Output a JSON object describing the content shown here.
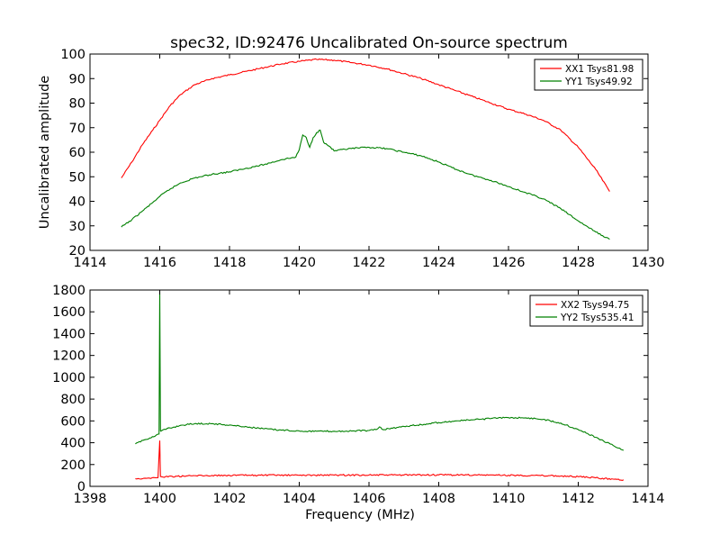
{
  "title": "spec32, ID:92476 Uncalibrated On-source spectrum",
  "colors": {
    "red": "#ff0000",
    "green": "#008000"
  },
  "chart_data": [
    {
      "type": "line",
      "title": "spec32, ID:92476 Uncalibrated On-source spectrum",
      "xlabel": "",
      "ylabel": "Uncalibrated amplitude",
      "xlim": [
        1414,
        1430
      ],
      "ylim": [
        20,
        100
      ],
      "xticks": [
        "1414",
        "1416",
        "1418",
        "1420",
        "1422",
        "1424",
        "1426",
        "1428",
        "1430"
      ],
      "yticks": [
        "20",
        "30",
        "40",
        "50",
        "60",
        "70",
        "80",
        "90",
        "100"
      ],
      "legend_position": "top-right",
      "grid": false,
      "series": [
        {
          "name": "XX1 Tsys81.98",
          "color": "#ff0000",
          "x": [
            1414.9,
            1415.2,
            1415.5,
            1415.8,
            1416.0,
            1416.3,
            1416.6,
            1417.0,
            1417.5,
            1418.0,
            1418.5,
            1419.0,
            1419.5,
            1420.0,
            1420.5,
            1421.0,
            1421.5,
            1422.0,
            1422.5,
            1423.0,
            1423.5,
            1424.0,
            1424.5,
            1425.0,
            1425.5,
            1426.0,
            1426.5,
            1427.0,
            1427.5,
            1428.0,
            1428.5,
            1428.9
          ],
          "y": [
            49.5,
            56,
            63,
            69,
            73,
            79,
            83.5,
            87.5,
            90,
            91.5,
            93,
            94.5,
            96,
            97,
            97.8,
            97.5,
            96.5,
            95.5,
            94,
            92,
            90,
            87.5,
            85,
            82.5,
            80,
            77.5,
            75.5,
            73,
            69,
            62,
            53,
            44
          ]
        },
        {
          "name": "YY1 Tsys49.92",
          "color": "#008000",
          "x": [
            1414.9,
            1415.2,
            1415.5,
            1415.8,
            1416.0,
            1416.3,
            1416.6,
            1417.0,
            1417.5,
            1418.0,
            1418.5,
            1419.0,
            1419.5,
            1419.9,
            1420.0,
            1420.1,
            1420.2,
            1420.3,
            1420.4,
            1420.5,
            1420.6,
            1420.7,
            1420.8,
            1420.9,
            1421.0,
            1421.5,
            1422.0,
            1422.5,
            1423.0,
            1423.5,
            1424.0,
            1424.5,
            1425.0,
            1425.5,
            1426.0,
            1426.5,
            1427.0,
            1427.5,
            1428.0,
            1428.5,
            1428.9
          ],
          "y": [
            29.5,
            32.5,
            36,
            39.5,
            42,
            45,
            47.5,
            49.5,
            51,
            52,
            53.5,
            55,
            57,
            58,
            61,
            67,
            66,
            62,
            66,
            68,
            69,
            64,
            63,
            62,
            60.5,
            61.5,
            62,
            61.5,
            60,
            58.5,
            56,
            53,
            50.5,
            48.5,
            46,
            43.5,
            41,
            37,
            32,
            27.5,
            24.5
          ]
        }
      ]
    },
    {
      "type": "line",
      "title": "",
      "xlabel": "Frequency (MHz)",
      "ylabel": "",
      "xlim": [
        1398,
        1414
      ],
      "ylim": [
        0,
        1800
      ],
      "xticks": [
        "1398",
        "1400",
        "1402",
        "1404",
        "1406",
        "1408",
        "1410",
        "1412",
        "1414"
      ],
      "yticks": [
        "0",
        "200",
        "400",
        "600",
        "800",
        "1000",
        "1200",
        "1400",
        "1600",
        "1800"
      ],
      "legend_position": "top-right",
      "grid": false,
      "series": [
        {
          "name": "XX2 Tsys94.75",
          "color": "#ff0000",
          "x": [
            1399.3,
            1399.7,
            1399.95,
            1400.0,
            1400.02,
            1400.05,
            1400.5,
            1401.0,
            1402.0,
            1403.0,
            1404.0,
            1405.0,
            1406.0,
            1407.0,
            1408.0,
            1409.0,
            1410.0,
            1411.0,
            1411.5,
            1412.0,
            1412.5,
            1413.0,
            1413.3
          ],
          "y": [
            70,
            76,
            80,
            420,
            90,
            88,
            92,
            98,
            101,
            102,
            102,
            103,
            104,
            104,
            105,
            104,
            102,
            98,
            95,
            88,
            78,
            66,
            60
          ]
        },
        {
          "name": "YY2 Tsys535.41",
          "color": "#008000",
          "x": [
            1399.3,
            1399.6,
            1399.9,
            1399.98,
            1400.0,
            1400.02,
            1400.05,
            1400.3,
            1400.6,
            1401.0,
            1401.5,
            1402.0,
            1402.5,
            1403.0,
            1403.5,
            1404.0,
            1404.5,
            1405.0,
            1405.5,
            1406.0,
            1406.2,
            1406.3,
            1406.4,
            1407.0,
            1407.5,
            1408.0,
            1408.5,
            1409.0,
            1409.5,
            1410.0,
            1410.5,
            1411.0,
            1411.5,
            1412.0,
            1412.5,
            1413.0,
            1413.3
          ],
          "y": [
            390,
            430,
            470,
            480,
            1800,
            510,
            510,
            535,
            560,
            575,
            575,
            562,
            545,
            528,
            515,
            508,
            505,
            505,
            507,
            512,
            520,
            545,
            520,
            550,
            565,
            585,
            600,
            610,
            622,
            630,
            628,
            615,
            580,
            520,
            450,
            375,
            330
          ]
        }
      ]
    }
  ]
}
